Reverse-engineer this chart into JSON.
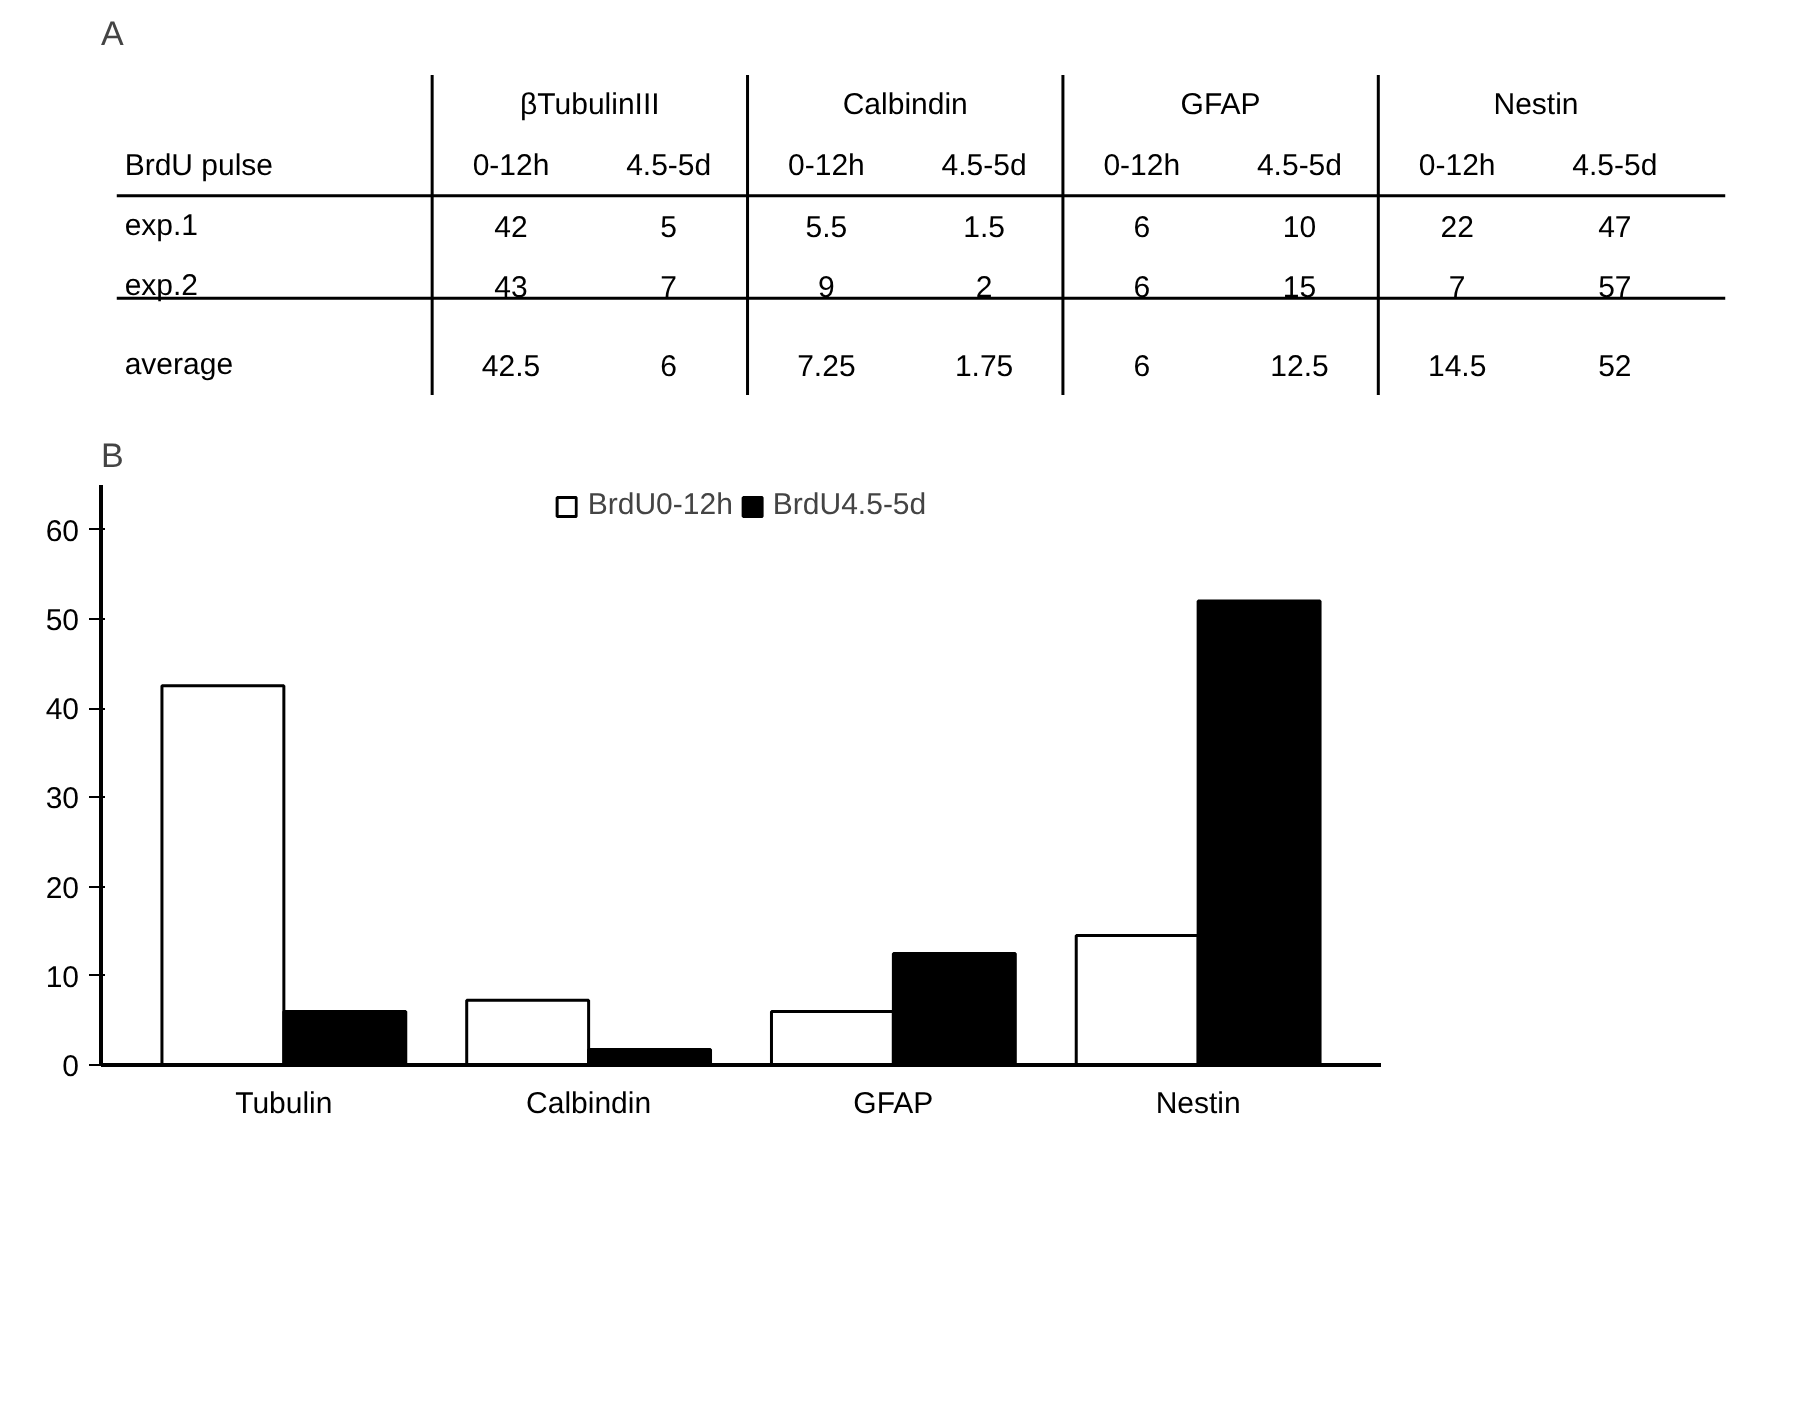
{
  "chart_data": [
    {
      "type": "heatmap",
      "title": "A",
      "data_labels": true,
      "ylabel": "BrdU pulse",
      "annotations": [
        "βTubulinIII",
        "Calbindin",
        "GFAP",
        "Nestin"
      ],
      "categories": [
        "0-12h",
        "4.5-5d",
        "0-12h",
        "4.5-5d",
        "0-12h",
        "4.5-5d",
        "0-12h",
        "4.5-5d"
      ],
      "y_categories": [
        "exp.1",
        "exp.2",
        "average"
      ],
      "cells": [
        [
          42,
          5,
          5.5,
          1.5,
          6,
          10,
          22,
          47
        ],
        [
          43,
          7,
          9,
          2,
          6,
          15,
          7,
          57
        ],
        [
          42.5,
          6,
          7.25,
          1.75,
          6,
          12.5,
          14.5,
          52
        ]
      ]
    },
    {
      "type": "bar",
      "title": "B",
      "categories": [
        "Tubulin",
        "Calbindin",
        "GFAP",
        "Nestin"
      ],
      "series": [
        {
          "name": "BrdU0-12h",
          "color": "#ffffff",
          "values": [
            42.5,
            7.25,
            6,
            14.5
          ]
        },
        {
          "name": "BrdU4.5-5d",
          "color": "#000000",
          "values": [
            6,
            1.75,
            12.5,
            52
          ]
        }
      ],
      "ylim": [
        0,
        65
      ],
      "yticks": [
        0,
        10,
        20,
        30,
        40,
        50,
        60
      ],
      "grid": false,
      "legend": "top"
    }
  ]
}
